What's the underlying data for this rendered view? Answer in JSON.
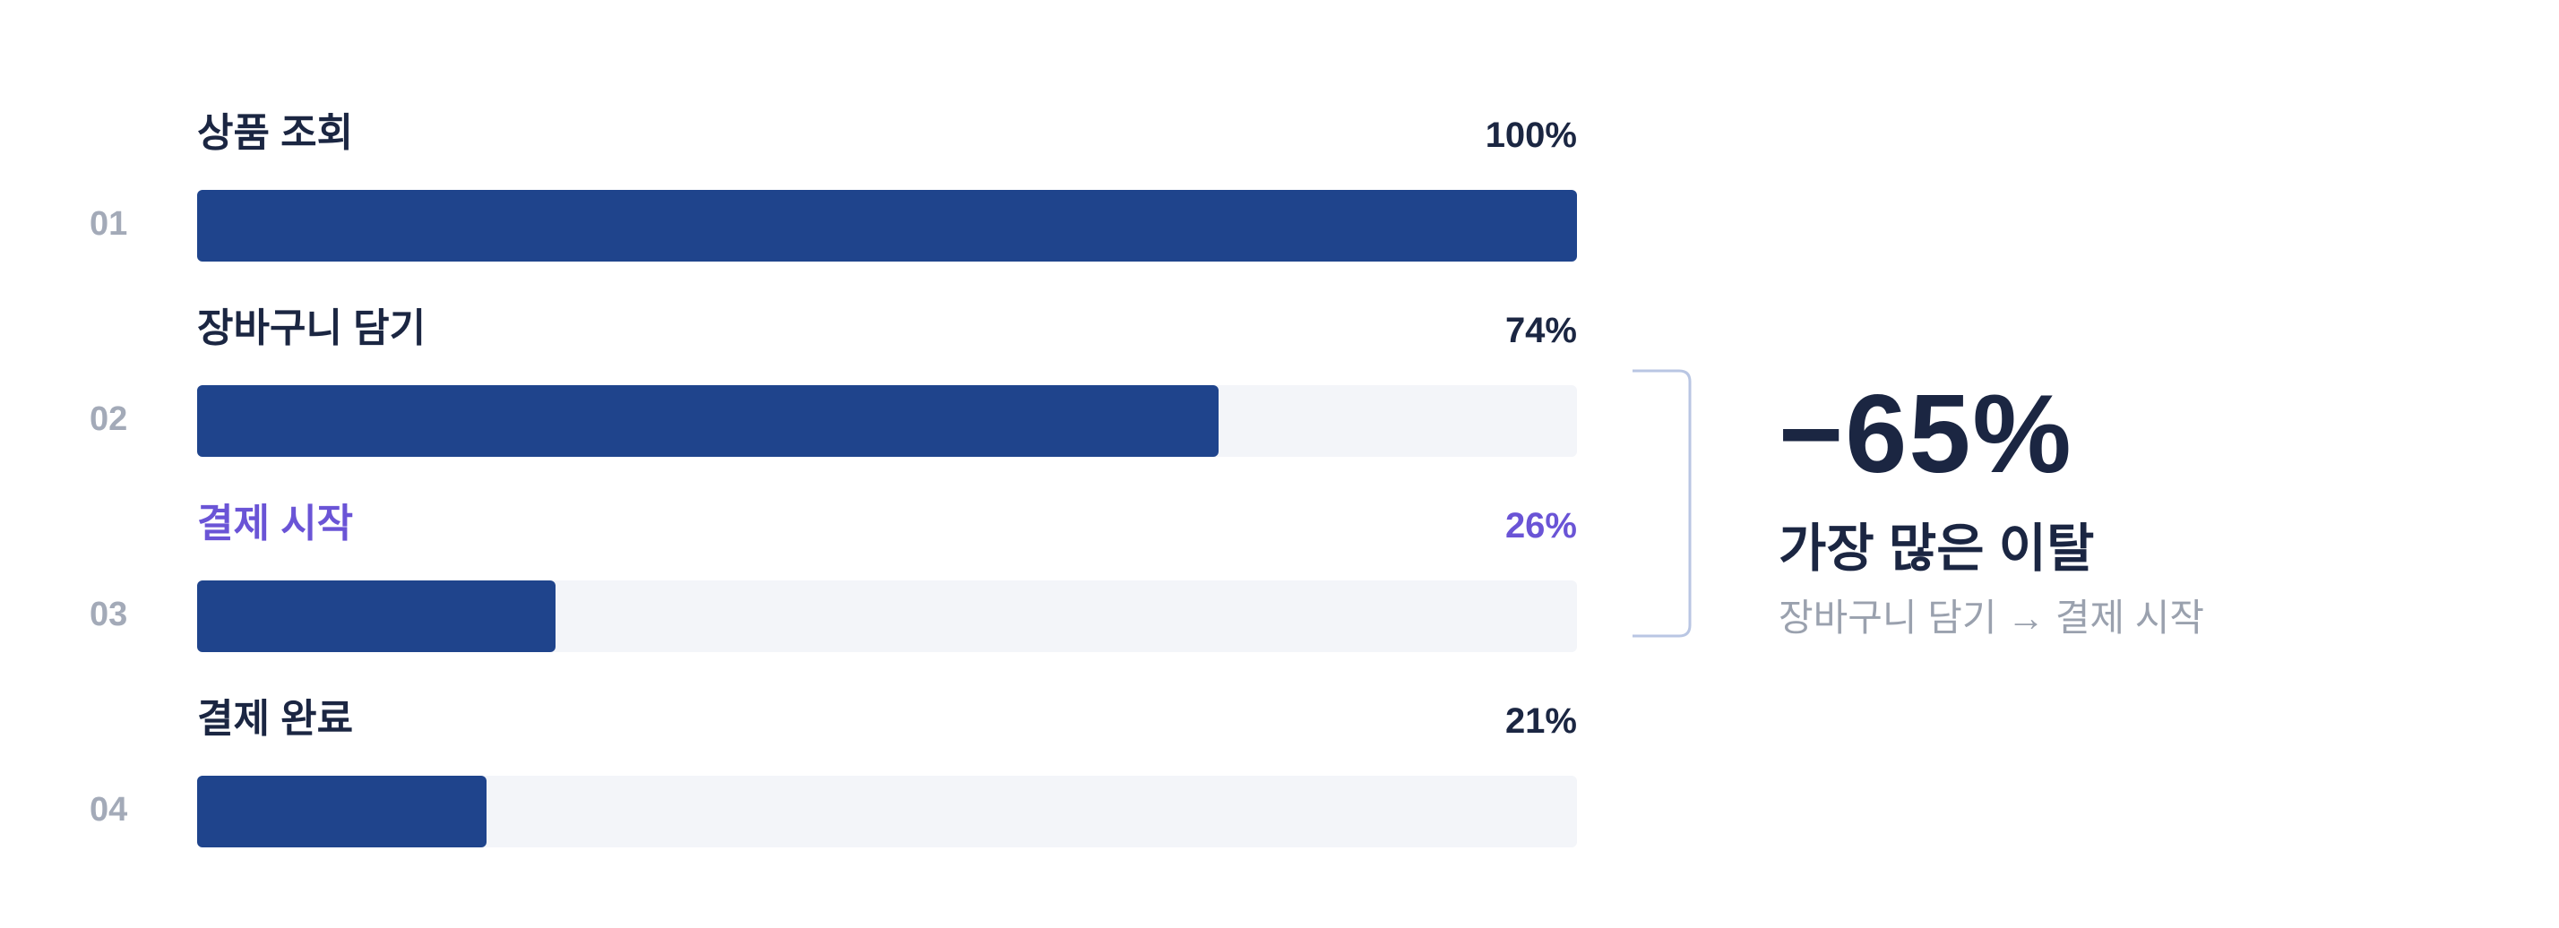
{
  "chart_data": {
    "type": "bar",
    "orientation": "horizontal",
    "categories": [
      "상품 조회",
      "장바구니 담기",
      "결제 시작",
      "결제 완료"
    ],
    "values": [
      100,
      74,
      26,
      21
    ],
    "xlim": [
      0,
      100
    ],
    "grid": false,
    "legend": "none",
    "steps": [
      {
        "num": "01",
        "label": "상품 조회",
        "value": 100,
        "pct_label": "100%",
        "highlight": false
      },
      {
        "num": "02",
        "label": "장바구니 담기",
        "value": 74,
        "pct_label": "74%",
        "highlight": false
      },
      {
        "num": "03",
        "label": "결제 시작",
        "value": 26,
        "pct_label": "26%",
        "highlight": true
      },
      {
        "num": "04",
        "label": "결제 완료",
        "value": 21,
        "pct_label": "21%",
        "highlight": false
      }
    ],
    "annotation": {
      "value": "−65%",
      "title": "가장 많은 이탈",
      "subtitle": "장바구니 담기 → 결제 시작",
      "spans": [
        "장바구니 담기",
        "결제 시작"
      ]
    }
  },
  "colors": {
    "bar_fill": "#1f448c",
    "track": "#f3f5f9",
    "text_dark": "#1b2642",
    "highlight": "#6a54d6",
    "muted": "#a3aab8",
    "bracket": "#b9c6e3"
  }
}
